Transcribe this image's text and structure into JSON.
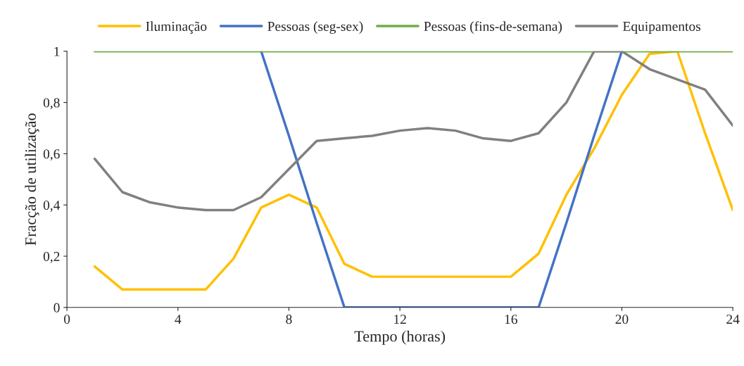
{
  "chart_data": {
    "type": "line",
    "xlabel": "Tempo (horas)",
    "ylabel": "Fracção de utilização",
    "x": [
      1,
      2,
      3,
      4,
      5,
      6,
      7,
      8,
      9,
      10,
      11,
      12,
      13,
      14,
      15,
      16,
      17,
      18,
      19,
      20,
      21,
      22,
      23,
      24
    ],
    "series": [
      {
        "name": "Iluminação",
        "color": "#ffc000",
        "values": [
          0.16,
          0.07,
          0.07,
          0.07,
          0.07,
          0.19,
          0.39,
          0.44,
          0.39,
          0.17,
          0.12,
          0.12,
          0.12,
          0.12,
          0.12,
          0.12,
          0.21,
          0.44,
          0.62,
          0.83,
          0.99,
          1.0,
          0.68,
          0.38
        ]
      },
      {
        "name": "Pessoas (seg-sex)",
        "color": "#4472c4",
        "values": [
          null,
          null,
          null,
          null,
          null,
          null,
          1,
          0.67,
          0.33,
          0,
          0,
          0,
          0,
          0,
          0,
          0,
          0,
          0.33,
          0.67,
          1,
          null,
          null,
          null,
          null
        ]
      },
      {
        "name": "Pessoas (fins-de-semana)",
        "color": "#70ad47",
        "values": [
          1,
          1,
          1,
          1,
          1,
          1,
          1,
          1,
          1,
          1,
          1,
          1,
          1,
          1,
          1,
          1,
          1,
          1,
          1,
          1,
          1,
          1,
          1,
          1
        ]
      },
      {
        "name": "Equipamentos",
        "color": "#808080",
        "values": [
          0.58,
          0.45,
          0.41,
          0.39,
          0.38,
          0.38,
          0.43,
          0.54,
          0.65,
          0.66,
          0.67,
          0.69,
          0.7,
          0.69,
          0.66,
          0.65,
          0.68,
          0.8,
          1.0,
          1.0,
          0.93,
          0.89,
          0.85,
          0.71
        ]
      }
    ],
    "xlim": [
      0,
      24
    ],
    "xticks": [
      0,
      4,
      8,
      12,
      16,
      20,
      24
    ],
    "ylim": [
      0,
      1
    ],
    "yticks": [
      0,
      {
        "value": 0.2,
        "label": "0,2"
      },
      {
        "value": 0.4,
        "label": "0,4"
      },
      {
        "value": 0.6,
        "label": "0,6"
      },
      {
        "value": 0.8,
        "label": "0,8"
      },
      1
    ],
    "grid": false,
    "legend": "top",
    "marker": "none",
    "line_style": "solid"
  }
}
